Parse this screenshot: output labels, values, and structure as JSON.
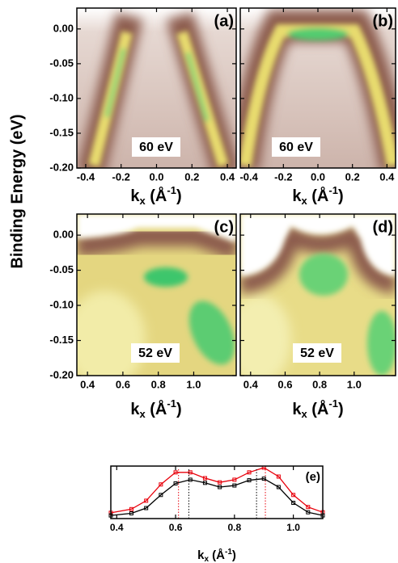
{
  "chart_data": [
    {
      "type": "image",
      "panel_label": "(a)",
      "annotation": "60 eV",
      "ylabel": "Binding Energy (eV)",
      "xlim": [
        -0.45,
        0.45
      ],
      "xticks": [
        -0.4,
        -0.2,
        {
          "value": 0,
          "label": "0.0"
        },
        0.2,
        0.4
      ],
      "ylim": [
        -0.2,
        0.03
      ],
      "yticks": [
        {
          "value": 0,
          "label": "0.00"
        },
        -0.05,
        {
          "value": -0.1,
          "label": "-0.10"
        },
        -0.15,
        {
          "value": -0.2,
          "label": "-0.20"
        }
      ],
      "ytick_labels": true,
      "xlabel": {
        "base": "k",
        "sub": "x",
        "mid": " (Å",
        "sup": "-1",
        "end": ")"
      }
    },
    {
      "type": "image",
      "panel_label": "(b)",
      "annotation": "60 eV",
      "xlim": [
        -0.45,
        0.45
      ],
      "xticks": [
        -0.4,
        -0.2,
        {
          "value": 0,
          "label": "0.0"
        },
        0.2,
        0.4
      ],
      "ylim": [
        -0.2,
        0.03
      ],
      "yticks": [
        0,
        -0.05,
        -0.1,
        -0.15,
        -0.2
      ],
      "ytick_labels": false,
      "xlabel": {
        "base": "k",
        "sub": "x",
        "mid": " (Å",
        "sup": "-1",
        "end": ")"
      }
    },
    {
      "type": "image",
      "panel_label": "(c)",
      "annotation": "52 eV",
      "xlim": [
        0.34,
        1.24
      ],
      "xticks": [
        0.4,
        0.6,
        0.8,
        {
          "value": 1,
          "label": "1.0"
        }
      ],
      "ylim": [
        -0.2,
        0.03
      ],
      "yticks": [
        {
          "value": 0,
          "label": "0.00"
        },
        -0.05,
        {
          "value": -0.1,
          "label": "-0.10"
        },
        -0.15,
        {
          "value": -0.2,
          "label": "-0.20"
        }
      ],
      "ytick_labels": true,
      "xlabel": {
        "base": "k",
        "sub": "x",
        "mid": " (Å",
        "sup": "-1",
        "end": ")"
      }
    },
    {
      "type": "image",
      "panel_label": "(d)",
      "annotation": "52 eV",
      "xlim": [
        0.34,
        1.24
      ],
      "xticks": [
        0.4,
        0.6,
        0.8,
        {
          "value": 1,
          "label": "1.0"
        }
      ],
      "ylim": [
        -0.2,
        0.03
      ],
      "yticks": [
        0,
        -0.05,
        -0.1,
        -0.15,
        -0.2
      ],
      "ytick_labels": false,
      "xlabel": {
        "base": "k",
        "sub": "x",
        "mid": " (Å",
        "sup": "-1",
        "end": ")"
      }
    },
    {
      "type": "line",
      "panel_label": "(e)",
      "xlim": [
        0.38,
        1.1
      ],
      "xticks": [
        0.4,
        0.6,
        0.8,
        {
          "value": 1,
          "label": "1.0"
        }
      ],
      "ylim": [
        0,
        1
      ],
      "x": [
        0.38,
        0.45,
        0.5,
        0.55,
        0.6,
        0.65,
        0.7,
        0.75,
        0.8,
        0.85,
        0.9,
        0.95,
        1.0,
        1.05,
        1.1
      ],
      "series": [
        {
          "color": "#e8000b",
          "values": [
            0.11,
            0.18,
            0.34,
            0.65,
            0.88,
            0.88,
            0.77,
            0.69,
            0.74,
            0.88,
            0.97,
            0.8,
            0.45,
            0.22,
            0.12
          ],
          "peaks": [
            0.61,
            0.905
          ]
        },
        {
          "color": "#000000",
          "values": [
            0.06,
            0.1,
            0.2,
            0.45,
            0.67,
            0.74,
            0.68,
            0.6,
            0.63,
            0.73,
            0.76,
            0.6,
            0.3,
            0.12,
            0.06
          ],
          "peaks": [
            0.645,
            0.875
          ]
        }
      ],
      "xlabel": {
        "base": "k",
        "sub": "x",
        "mid": " (Å",
        "sup": "-1",
        "end": ")"
      }
    }
  ]
}
